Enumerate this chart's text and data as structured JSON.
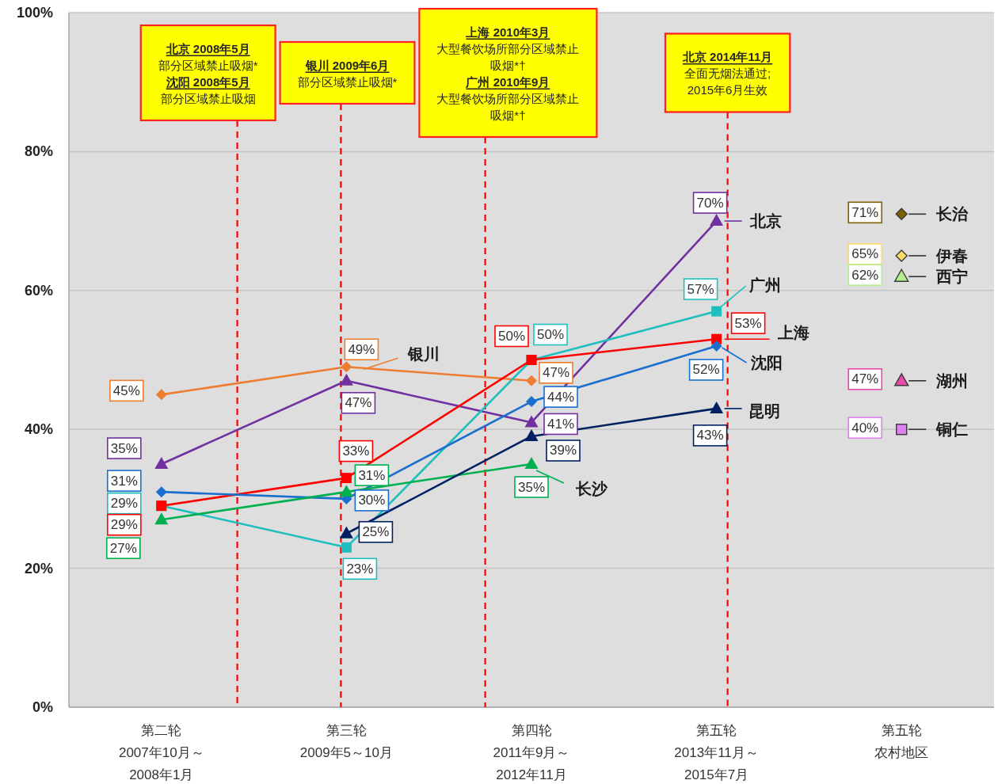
{
  "chart_data": {
    "type": "line",
    "categories": [
      "第二轮\n2007年10月～\n2008年1月",
      "第三轮\n2009年5～10月",
      "第四轮\n2011年9月～\n2012年11月",
      "第五轮\n2013年11月～\n2015年7月",
      "第五轮农村地区"
    ],
    "ylim": [
      0,
      100
    ],
    "yticks": [
      {
        "value": 0,
        "label": "0%"
      },
      {
        "value": 20,
        "label": "20%"
      },
      {
        "value": 40,
        "label": "40%"
      },
      {
        "value": 60,
        "label": "60%"
      },
      {
        "value": 80,
        "label": "80%"
      },
      {
        "value": 100,
        "label": "100%"
      }
    ],
    "grid": "y",
    "line_style": "solid",
    "legend": "right",
    "series": [
      {
        "name": "银川",
        "color": "#ed7d31",
        "marker": "diamond",
        "values": [
          45,
          49,
          47,
          null,
          null
        ],
        "value_labels": [
          "45%",
          "49%",
          "47%",
          null,
          null
        ]
      },
      {
        "name": "北京",
        "color": "#7030a0",
        "marker": "triangle",
        "values": [
          35,
          47,
          41,
          70,
          null
        ],
        "value_labels": [
          "35%",
          "47%",
          "41%",
          "70%",
          null
        ]
      },
      {
        "name": "广州",
        "color": "#1fbfbf",
        "marker": "square",
        "values": [
          29,
          23,
          50,
          57,
          null
        ],
        "value_labels": [
          "29%",
          "23%",
          "50%",
          "57%",
          null
        ]
      },
      {
        "name": "上海",
        "color": "#ff0000",
        "marker": "square",
        "values": [
          29,
          33,
          50,
          53,
          null
        ],
        "value_labels": [
          "29%",
          "33%",
          "50%",
          "53%",
          null
        ]
      },
      {
        "name": "沈阳",
        "color": "#1a6fce",
        "marker": "diamond",
        "values": [
          31,
          30,
          44,
          52,
          null
        ],
        "value_labels": [
          "31%",
          "30%",
          "44%",
          "52%",
          null
        ]
      },
      {
        "name": "长沙",
        "color": "#00b050",
        "marker": "triangle",
        "values": [
          27,
          31,
          35,
          null,
          null
        ],
        "value_labels": [
          "27%",
          "31%",
          "35%",
          null,
          null
        ]
      },
      {
        "name": "昆明",
        "color": "#002060",
        "marker": "triangle",
        "values": [
          null,
          25,
          39,
          43,
          null
        ],
        "value_labels": [
          null,
          "25%",
          "39%",
          "43%",
          null
        ]
      },
      {
        "name": "长治",
        "type": "scatter",
        "color": "#7f6000",
        "marker": "diamond",
        "values": [
          null,
          null,
          null,
          null,
          71
        ],
        "value_labels": [
          null,
          null,
          null,
          null,
          "71%"
        ]
      },
      {
        "name": "伊春",
        "type": "scatter",
        "color": "#ffd966",
        "marker": "diamond",
        "values": [
          null,
          null,
          null,
          null,
          65
        ],
        "value_labels": [
          null,
          null,
          null,
          null,
          "65%"
        ]
      },
      {
        "name": "西宁",
        "type": "scatter",
        "color": "#b5ef8a",
        "marker": "triangle",
        "values": [
          null,
          null,
          null,
          null,
          62
        ],
        "value_labels": [
          null,
          null,
          null,
          null,
          "62%"
        ]
      },
      {
        "name": "湖州",
        "type": "scatter",
        "color": "#e84aa8",
        "marker": "triangle",
        "values": [
          null,
          null,
          null,
          null,
          47
        ],
        "value_labels": [
          null,
          null,
          null,
          null,
          "47%"
        ]
      },
      {
        "name": "铜仁",
        "type": "scatter",
        "color": "#e07ff0",
        "marker": "square",
        "values": [
          null,
          null,
          null,
          null,
          40
        ],
        "value_labels": [
          null,
          null,
          null,
          null,
          "40%"
        ]
      }
    ],
    "annotations": [
      "北京 2008年5月",
      "部分区域禁止吸烟*",
      "沈阳 2008年5月",
      "部分区域禁止吸烟",
      "银川 2009年6月",
      "部分区域禁止吸烟*",
      "上海 2010年3月",
      "大型餐饮场所部分区域禁止吸烟*†",
      "广州 2010年9月",
      "大型餐饮场所部分区域禁止吸烟*†",
      "北京 2014年11月",
      "全面无烟法通过;",
      "2015年6月生效"
    ]
  }
}
